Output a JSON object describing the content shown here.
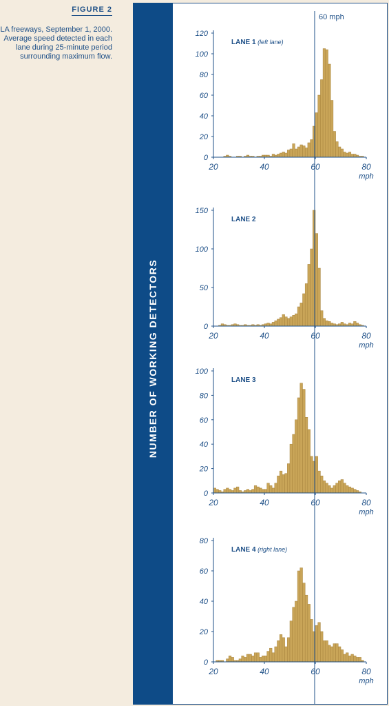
{
  "caption": {
    "figure_label": "FIGURE 2",
    "text": "LA freeways, September 1, 2000. Average speed detected in each lane during 25-minute period surrounding maximum flow."
  },
  "y_axis_title": "NUMBER OF WORKING DETECTORS",
  "reference_line_label": "60 mph",
  "colors": {
    "bar": "#c9a558",
    "bar_edge": "#a8843e",
    "axis": "#1d4f87",
    "band": "#0e4b87",
    "background": "#f4ecdf"
  },
  "chart_data": [
    {
      "type": "bar",
      "title": "LANE 1",
      "subtitle": "(left lane)",
      "x": [
        20,
        21,
        22,
        23,
        24,
        25,
        26,
        27,
        28,
        29,
        30,
        31,
        32,
        33,
        34,
        35,
        36,
        37,
        38,
        39,
        40,
        41,
        42,
        43,
        44,
        45,
        46,
        47,
        48,
        49,
        50,
        51,
        52,
        53,
        54,
        55,
        56,
        57,
        58,
        59,
        60,
        61,
        62,
        63,
        64,
        65,
        66,
        67,
        68,
        69,
        70,
        71,
        72,
        73,
        74,
        75,
        76,
        77,
        78,
        79
      ],
      "values": [
        0,
        0,
        0,
        0,
        1,
        2,
        1,
        0,
        0,
        1,
        1,
        0,
        1,
        2,
        1,
        1,
        0,
        1,
        1,
        2,
        2,
        2,
        1,
        3,
        2,
        3,
        4,
        5,
        4,
        7,
        8,
        13,
        8,
        10,
        12,
        11,
        9,
        14,
        17,
        30,
        43,
        60,
        75,
        105,
        104,
        90,
        55,
        25,
        15,
        10,
        8,
        5,
        4,
        5,
        3,
        3,
        2,
        1,
        1,
        0
      ],
      "xticks": [
        20,
        40,
        60,
        80
      ],
      "yticks": [
        0,
        20,
        40,
        60,
        80,
        100,
        120
      ],
      "xlabel": "mph",
      "xlim": [
        20,
        80
      ],
      "ylim": [
        0,
        120
      ]
    },
    {
      "type": "bar",
      "title": "LANE 2",
      "subtitle": "",
      "x": [
        20,
        21,
        22,
        23,
        24,
        25,
        26,
        27,
        28,
        29,
        30,
        31,
        32,
        33,
        34,
        35,
        36,
        37,
        38,
        39,
        40,
        41,
        42,
        43,
        44,
        45,
        46,
        47,
        48,
        49,
        50,
        51,
        52,
        53,
        54,
        55,
        56,
        57,
        58,
        59,
        60,
        61,
        62,
        63,
        64,
        65,
        66,
        67,
        68,
        69,
        70,
        71,
        72,
        73,
        74,
        75,
        76,
        77,
        78,
        79
      ],
      "values": [
        0,
        0,
        1,
        3,
        2,
        1,
        1,
        2,
        3,
        2,
        1,
        1,
        2,
        1,
        1,
        2,
        1,
        2,
        1,
        2,
        3,
        4,
        3,
        5,
        7,
        9,
        11,
        15,
        12,
        10,
        12,
        14,
        16,
        25,
        30,
        42,
        55,
        80,
        100,
        150,
        120,
        75,
        20,
        10,
        7,
        6,
        4,
        3,
        2,
        3,
        5,
        3,
        2,
        4,
        3,
        6,
        4,
        2,
        1,
        0
      ],
      "xticks": [
        20,
        40,
        60,
        80
      ],
      "yticks": [
        0,
        50,
        100,
        150
      ],
      "xlabel": "mph",
      "xlim": [
        20,
        80
      ],
      "ylim": [
        0,
        160
      ]
    },
    {
      "type": "bar",
      "title": "LANE 3",
      "subtitle": "",
      "x": [
        20,
        21,
        22,
        23,
        24,
        25,
        26,
        27,
        28,
        29,
        30,
        31,
        32,
        33,
        34,
        35,
        36,
        37,
        38,
        39,
        40,
        41,
        42,
        43,
        44,
        45,
        46,
        47,
        48,
        49,
        50,
        51,
        52,
        53,
        54,
        55,
        56,
        57,
        58,
        59,
        60,
        61,
        62,
        63,
        64,
        65,
        66,
        67,
        68,
        69,
        70,
        71,
        72,
        73,
        74,
        75,
        76,
        77,
        78,
        79
      ],
      "values": [
        4,
        3,
        2,
        1,
        3,
        4,
        3,
        2,
        4,
        5,
        2,
        1,
        2,
        3,
        2,
        3,
        6,
        5,
        4,
        3,
        3,
        8,
        6,
        4,
        8,
        14,
        18,
        15,
        16,
        24,
        40,
        48,
        60,
        78,
        90,
        85,
        62,
        52,
        30,
        26,
        30,
        18,
        14,
        10,
        8,
        6,
        4,
        6,
        8,
        10,
        11,
        8,
        6,
        5,
        4,
        3,
        2,
        1,
        0,
        0
      ],
      "xticks": [
        20,
        40,
        60,
        80
      ],
      "yticks": [
        0,
        20,
        40,
        60,
        80,
        100
      ],
      "xlabel": "mph",
      "xlim": [
        20,
        80
      ],
      "ylim": [
        0,
        100
      ]
    },
    {
      "type": "bar",
      "title": "LANE 4",
      "subtitle": "(right lane)",
      "x": [
        20,
        21,
        22,
        23,
        24,
        25,
        26,
        27,
        28,
        29,
        30,
        31,
        32,
        33,
        34,
        35,
        36,
        37,
        38,
        39,
        40,
        41,
        42,
        43,
        44,
        45,
        46,
        47,
        48,
        49,
        50,
        51,
        52,
        53,
        54,
        55,
        56,
        57,
        58,
        59,
        60,
        61,
        62,
        63,
        64,
        65,
        66,
        67,
        68,
        69,
        70,
        71,
        72,
        73,
        74,
        75,
        76,
        77,
        78,
        79
      ],
      "values": [
        0,
        1,
        1,
        1,
        0,
        2,
        4,
        3,
        1,
        1,
        2,
        4,
        3,
        5,
        5,
        4,
        6,
        6,
        3,
        4,
        4,
        7,
        9,
        6,
        10,
        14,
        18,
        16,
        10,
        16,
        27,
        36,
        40,
        60,
        62,
        52,
        44,
        38,
        28,
        20,
        24,
        26,
        20,
        14,
        14,
        11,
        10,
        12,
        12,
        10,
        8,
        5,
        6,
        4,
        5,
        4,
        3,
        3,
        1,
        0
      ],
      "xticks": [
        20,
        40,
        60,
        80
      ],
      "yticks": [
        0,
        20,
        40,
        60,
        80
      ],
      "xlabel": "mph",
      "xlim": [
        20,
        80
      ],
      "ylim": [
        0,
        80
      ]
    }
  ]
}
